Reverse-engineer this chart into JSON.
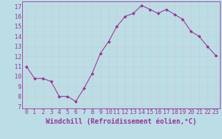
{
  "x": [
    0,
    1,
    2,
    3,
    4,
    5,
    6,
    7,
    8,
    9,
    10,
    11,
    12,
    13,
    14,
    15,
    16,
    17,
    18,
    19,
    20,
    21,
    22,
    23
  ],
  "y": [
    11.0,
    9.8,
    9.8,
    9.5,
    8.0,
    8.0,
    7.5,
    8.8,
    10.3,
    12.3,
    13.5,
    15.0,
    16.0,
    16.3,
    17.1,
    16.7,
    16.3,
    16.7,
    16.2,
    15.7,
    14.5,
    14.0,
    13.0,
    12.1
  ],
  "line_color": "#993399",
  "marker": "D",
  "marker_size": 2.0,
  "bg_color": "#bbdde6",
  "grid_color": "#cccccc",
  "xlabel": "Windchill (Refroidissement éolien,°C)",
  "xlabel_color": "#993399",
  "tick_color": "#993399",
  "ylim": [
    6.8,
    17.5
  ],
  "xlim": [
    -0.5,
    23.5
  ],
  "yticks": [
    7,
    8,
    9,
    10,
    11,
    12,
    13,
    14,
    15,
    16,
    17
  ],
  "xticks": [
    0,
    1,
    2,
    3,
    4,
    5,
    6,
    7,
    8,
    9,
    10,
    11,
    12,
    13,
    14,
    15,
    16,
    17,
    18,
    19,
    20,
    21,
    22,
    23
  ],
  "tick_fontsize": 6,
  "xlabel_fontsize": 7,
  "spine_color": "#993399",
  "fig_bg": "#bbdde6",
  "linewidth": 0.8
}
